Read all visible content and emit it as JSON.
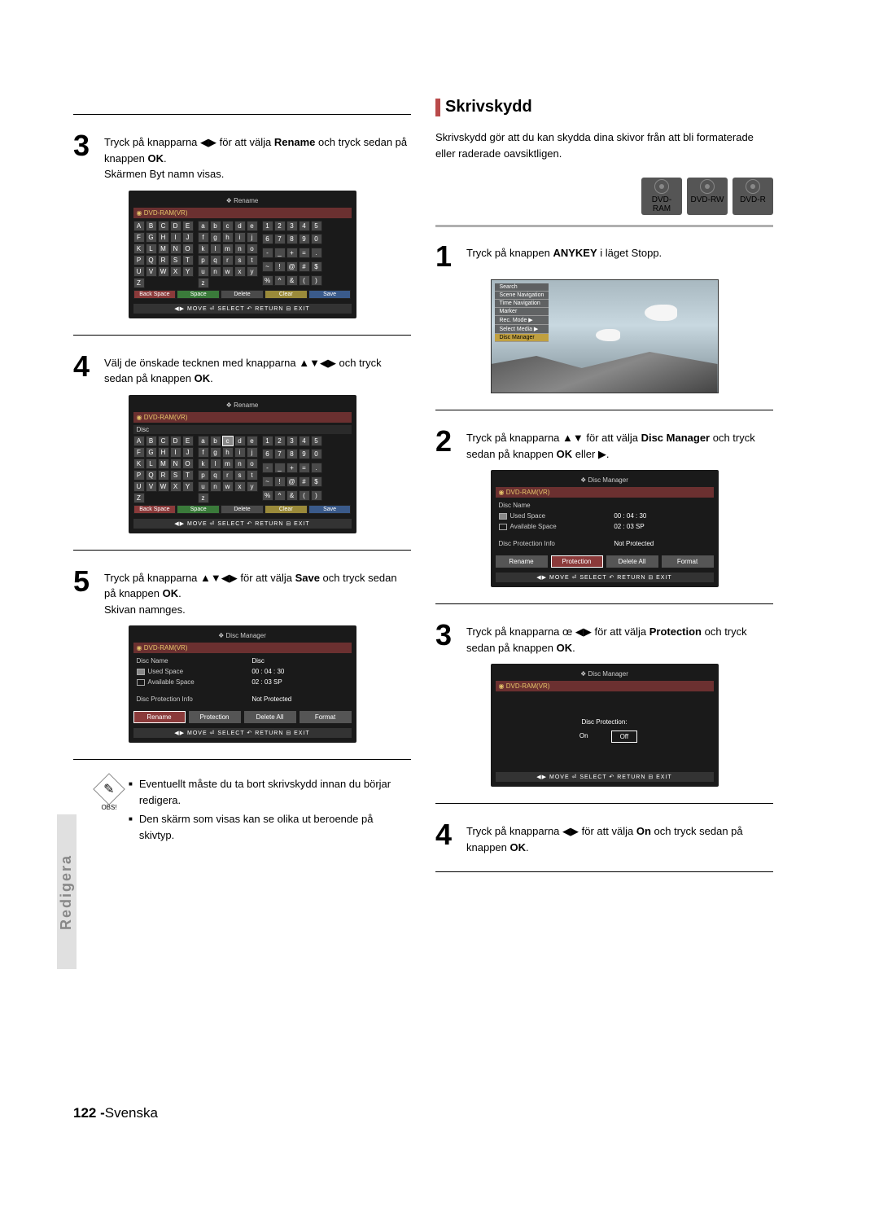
{
  "left": {
    "step3": "Tryck på knapparna ◀▶ för att välja <b>Rename</b> och tryck sedan på knappen <b>OK</b>.<br>Skärmen Byt namn visas.",
    "step4": "Välj de önskade tecknen med knapparna ▲▼◀▶ och tryck sedan på knappen <b>OK</b>.",
    "step5": "Tryck på knapparna ▲▼◀▶ för att välja <b>Save</b> och tryck sedan på knappen <b>OK</b>.<br>Skivan namnges.",
    "note1": "Eventuellt måste du ta bort skrivskydd innan du börjar redigera.",
    "note2": "Den skärm som visas kan se olika ut beroende på skivtyp.",
    "obs": "OBS!"
  },
  "right": {
    "title": "Skrivskydd",
    "intro": "Skrivskydd gör att du kan skydda dina skivor från att bli formaterade eller raderade oavsiktligen.",
    "badges": [
      "DVD-RAM",
      "DVD-RW",
      "DVD-R"
    ],
    "step1": "Tryck på knappen <b>ANYKEY</b> i läget Stopp.",
    "step2": "Tryck på knapparna ▲▼ för att välja <b>Disc Manager</b> och tryck sedan på knappen <b>OK</b> eller ▶.",
    "step3": "Tryck på knapparna œ ◀▶ för att välja <b>Protection</b> och tryck sedan på knappen <b>OK</b>.",
    "step4": "Tryck på knapparna ◀▶ för att välja <b>On</b> och tryck sedan på knappen <b>OK</b>."
  },
  "side": "Redigera",
  "footer_page": "122 -",
  "footer_lang": "Svenska",
  "screens": {
    "rename_title": "Rename",
    "dvd_label": "DVD-RAM(VR)",
    "disc_label": "Disc",
    "foot": "MOVE    SELECT    RETURN    EXIT",
    "foot_icons": "◀▶ MOVE   ⏎ SELECT   ↶ RETURN   ⊟ EXIT",
    "keys_upper": [
      "A",
      "B",
      "C",
      "D",
      "E",
      "F",
      "G",
      "H",
      "I",
      "J",
      "K",
      "L",
      "M",
      "N",
      "O",
      "P",
      "Q",
      "R",
      "S",
      "T",
      "U",
      "V",
      "W",
      "X",
      "Y",
      "Z"
    ],
    "keys_lower": [
      "a",
      "b",
      "c",
      "d",
      "e",
      "f",
      "g",
      "h",
      "i",
      "j",
      "k",
      "l",
      "m",
      "n",
      "o",
      "p",
      "q",
      "r",
      "s",
      "t",
      "u",
      "n",
      "w",
      "x",
      "y",
      "z"
    ],
    "keys_num": [
      "1",
      "2",
      "3",
      "4",
      "5",
      "6",
      "7",
      "8",
      "9",
      "0",
      "-",
      "_",
      "+",
      "=",
      ".",
      "~",
      "!",
      "@",
      "#",
      "$",
      "%",
      "^",
      "&",
      "(",
      ")"
    ],
    "ctrl": {
      "back": "Back Space",
      "space": "Space",
      "del": "Delete",
      "clear": "Clear",
      "save": "Save"
    },
    "dm_title": "Disc Manager",
    "dm": {
      "name_lbl": "Disc Name",
      "name_val": "Disc",
      "used_lbl": "Used Space",
      "used_val": "00 : 04 : 30",
      "avail_lbl": "Available Space",
      "avail_val": "02 : 03 SP",
      "prot_lbl": "Disc Protection Info",
      "prot_val": "Not Protected",
      "btns": [
        "Rename",
        "Protection",
        "Delete All",
        "Format"
      ]
    },
    "prot": {
      "title": "Disc Protection:",
      "on": "On",
      "off": "Off"
    },
    "anykey_menu": [
      "Search",
      "Scene Navigation",
      "Time Navigation",
      "Marker",
      "Rec. Mode",
      "Select Media",
      "Disc Manager"
    ]
  }
}
